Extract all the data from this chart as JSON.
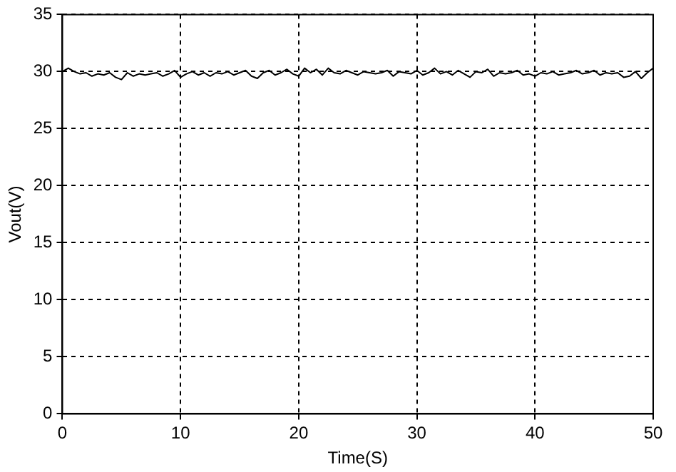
{
  "chart_data": {
    "type": "line",
    "xlabel": "Time(S)",
    "ylabel": "Vout(V)",
    "x": [
      0,
      0.5,
      1,
      1.5,
      2,
      2.5,
      3,
      3.5,
      4,
      4.5,
      5,
      5.5,
      6,
      6.5,
      7,
      7.5,
      8,
      8.5,
      9,
      9.5,
      10,
      10.5,
      11,
      11.5,
      12,
      12.5,
      13,
      13.5,
      14,
      14.5,
      15,
      15.5,
      16,
      16.5,
      17,
      17.5,
      18,
      18.5,
      19,
      19.5,
      20,
      20.5,
      21,
      21.5,
      22,
      22.5,
      23,
      23.5,
      24,
      24.5,
      25,
      25.5,
      26,
      26.5,
      27,
      27.5,
      28,
      28.5,
      29,
      29.5,
      30,
      30.5,
      31,
      31.5,
      32,
      32.5,
      33,
      33.5,
      34,
      34.5,
      35,
      35.5,
      36,
      36.5,
      37,
      37.5,
      38,
      38.5,
      39,
      39.5,
      40,
      40.5,
      41,
      41.5,
      42,
      42.5,
      43,
      43.5,
      44,
      44.5,
      45,
      45.5,
      46,
      46.5,
      47,
      47.5,
      48,
      48.5,
      49,
      49.5,
      50
    ],
    "series": [
      {
        "color": "#000000",
        "values": [
          30,
          30.3,
          30,
          29.8,
          29.9,
          29.6,
          29.8,
          29.7,
          29.9,
          29.5,
          29.3,
          29.9,
          29.6,
          29.8,
          29.7,
          29.8,
          29.9,
          29.6,
          29.8,
          30.1,
          29.5,
          29.8,
          30,
          29.7,
          29.9,
          29.6,
          29.9,
          29.8,
          30,
          29.7,
          29.9,
          30.1,
          29.6,
          29.4,
          29.9,
          30.1,
          29.7,
          29.9,
          30.2,
          29.8,
          29.6,
          30.3,
          29.9,
          30.2,
          29.7,
          30.3,
          29.9,
          29.8,
          30.1,
          29.9,
          29.7,
          30,
          29.9,
          29.8,
          29.9,
          30.1,
          29.6,
          30,
          29.9,
          29.8,
          30.1,
          29.7,
          29.9,
          30.3,
          29.8,
          30,
          29.7,
          30.1,
          29.8,
          29.5,
          30,
          29.9,
          30.2,
          29.6,
          29.9,
          29.8,
          29.9,
          30.1,
          29.7,
          29.8,
          29.6,
          29.9,
          29.8,
          30,
          29.7,
          29.8,
          29.9,
          30.1,
          29.8,
          29.9,
          30.1,
          29.7,
          29.9,
          29.8,
          29.9,
          29.5,
          29.6,
          30,
          29.4,
          29.9,
          30.3
        ]
      }
    ],
    "xlim": [
      0,
      50
    ],
    "xticks": [
      0,
      10,
      20,
      30,
      40,
      50
    ],
    "ylim": [
      0,
      35
    ],
    "yticks": [
      0,
      5,
      10,
      15,
      20,
      25,
      30,
      35
    ],
    "grid": true,
    "marker": "none",
    "line_style": "solid",
    "legend": false
  }
}
